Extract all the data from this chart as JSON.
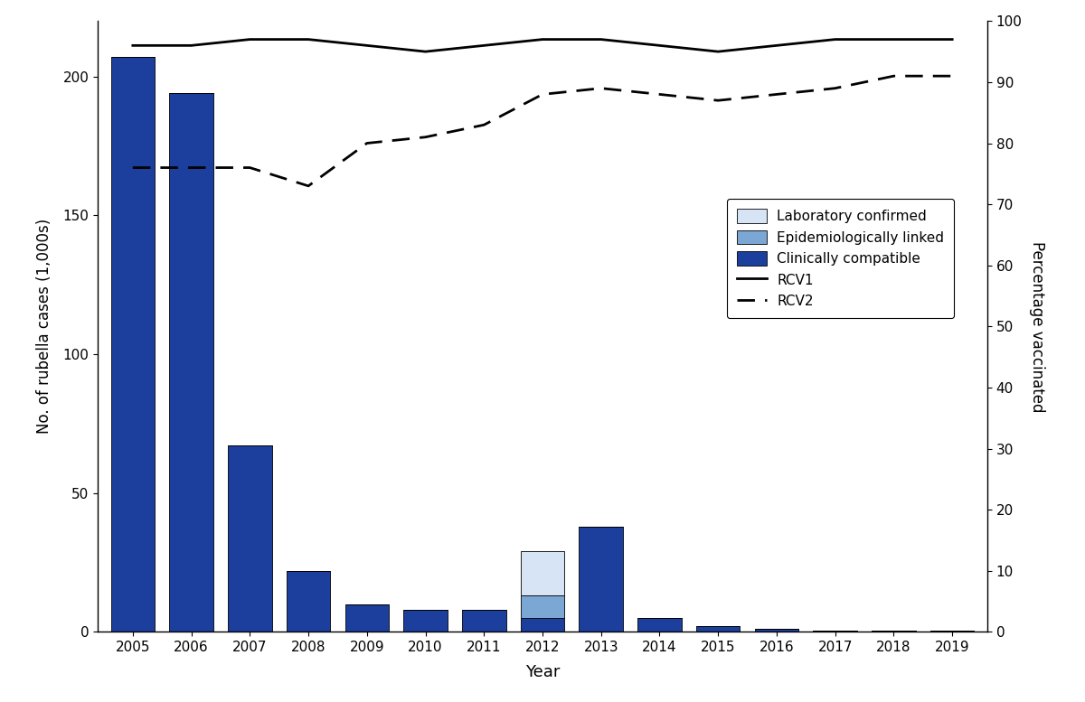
{
  "years": [
    2005,
    2006,
    2007,
    2008,
    2009,
    2010,
    2011,
    2012,
    2013,
    2014,
    2015,
    2016,
    2017,
    2018,
    2019
  ],
  "lab_confirmed": [
    0,
    0,
    0,
    0,
    0,
    0,
    0,
    16,
    0,
    0,
    0,
    0,
    0,
    0,
    0
  ],
  "epi_linked": [
    0,
    0,
    0,
    0,
    0,
    0,
    0,
    8,
    0,
    0,
    0,
    0,
    0,
    0,
    0
  ],
  "clinically_compatible": [
    207,
    194,
    67,
    22,
    10,
    8,
    8,
    5,
    38,
    5,
    2,
    1,
    0.5,
    0.3,
    0.3
  ],
  "RCV1": [
    96,
    96,
    97,
    97,
    96,
    95,
    96,
    97,
    97,
    96,
    95,
    96,
    97,
    97,
    97
  ],
  "RCV2": [
    76,
    76,
    76,
    73,
    80,
    81,
    83,
    88,
    89,
    88,
    87,
    88,
    89,
    91,
    91
  ],
  "color_lab": "#d6e4f5",
  "color_epi": "#7ba7d4",
  "color_clin": "#1c3f9e",
  "color_rcv1": "#000000",
  "color_rcv2": "#000000",
  "ylabel_left": "No. of rubella cases (1,000s)",
  "ylabel_right": "Percentage vaccinated",
  "xlabel": "Year",
  "ylim_left": [
    0,
    220
  ],
  "ylim_right": [
    0,
    100
  ],
  "yticks_left": [
    0,
    50,
    100,
    150,
    200
  ],
  "yticks_right": [
    0,
    10,
    20,
    30,
    40,
    50,
    60,
    70,
    80,
    90,
    100
  ],
  "legend_labels": [
    "Laboratory confirmed",
    "Epidemiologically linked",
    "Clinically compatible",
    "RCV1",
    "RCV2"
  ],
  "bar_width": 0.75,
  "figsize": [
    12.0,
    7.77
  ],
  "dpi": 100
}
